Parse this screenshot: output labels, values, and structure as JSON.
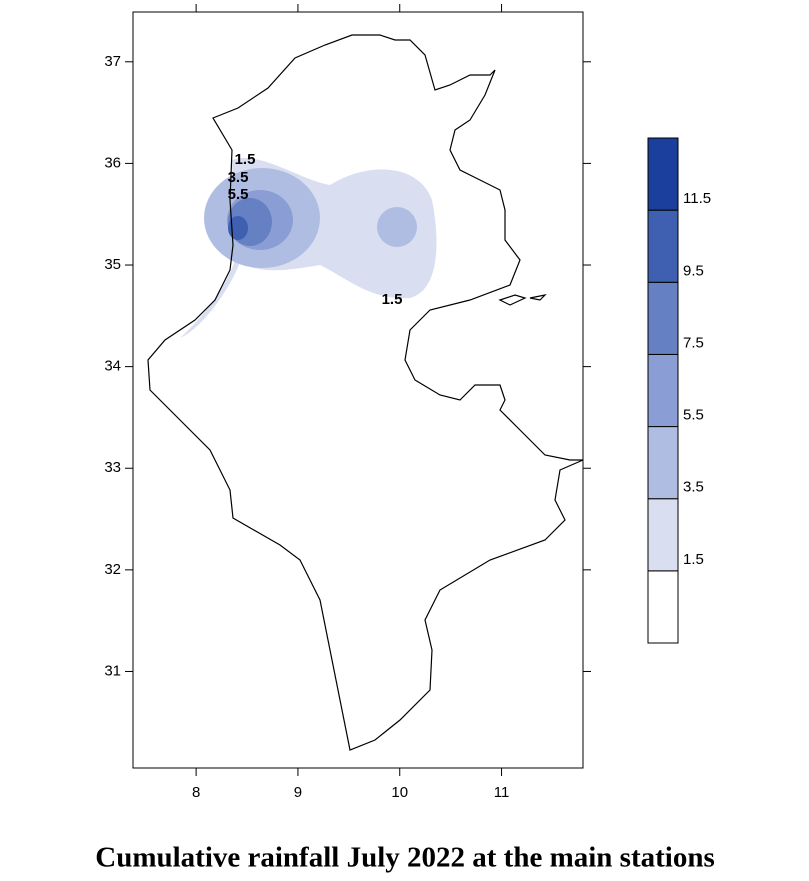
{
  "chart_data": {
    "type": "contour",
    "title": "Cumulative rainfall July 2022 at the main stations",
    "xlim": [
      7.38,
      11.8
    ],
    "xticks": [
      8,
      9,
      10,
      11
    ],
    "ylim": [
      30.05,
      37.49
    ],
    "yticks": [
      31,
      32,
      33,
      34,
      35,
      36,
      37
    ],
    "levels": [
      1.5,
      3.5,
      5.5,
      7.5,
      9.5,
      11.5
    ],
    "clim": [
      -0.5,
      13.5
    ],
    "colors": [
      "#ffffff",
      "#d9dff0",
      "#b0bde2",
      "#8a9dd4",
      "#6680c4",
      "#3f5fb0",
      "#1a3f9c"
    ],
    "contour_labels": [
      1.5,
      3.5,
      5.5,
      1.5
    ]
  }
}
